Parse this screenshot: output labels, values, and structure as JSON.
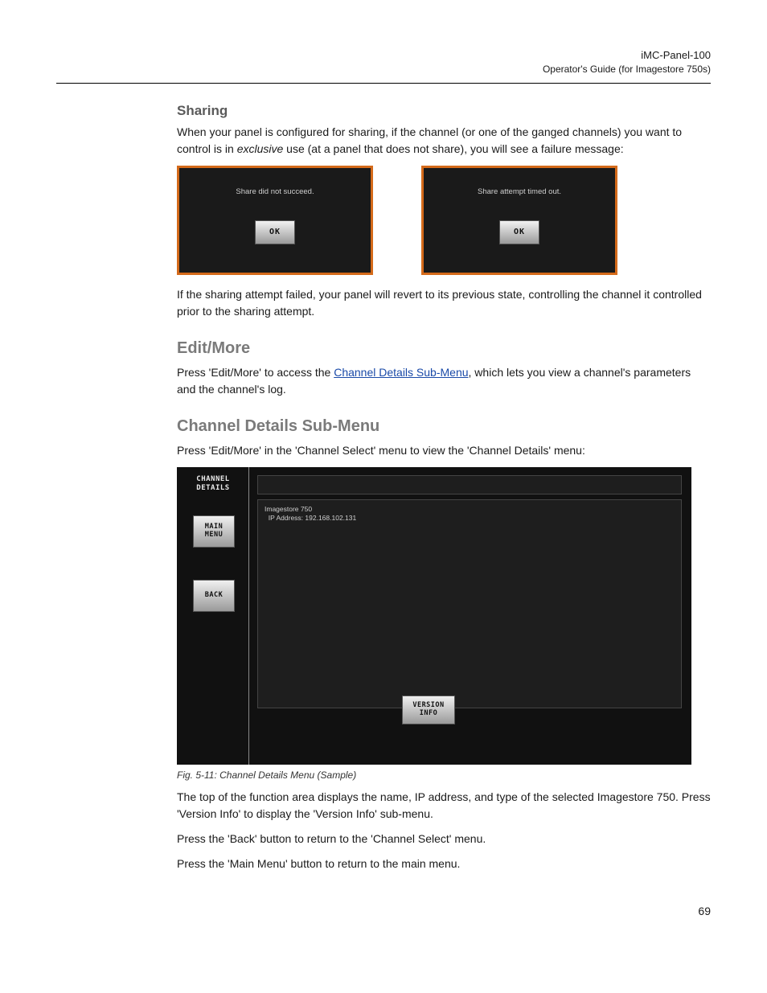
{
  "header": {
    "line1": "iMC-Panel-100",
    "line2": "Operator's Guide (for Imagestore 750s)"
  },
  "sharing": {
    "heading": "Sharing",
    "para1_pre": "When your panel is configured for sharing, if the channel (or one of the ganged channels) you want to control is in ",
    "para1_em": "exclusive",
    "para1_post": " use (at a panel that does not share), you will see a failure message:",
    "dialog1": {
      "msg": "Share did not succeed.",
      "ok": "OK"
    },
    "dialog2": {
      "msg": "Share attempt timed out.",
      "ok": "OK"
    },
    "para2": "If the sharing attempt failed, your panel will revert to its previous state, controlling the channel it controlled prior to the sharing attempt."
  },
  "editmore": {
    "heading": "Edit/More",
    "para_pre": "Press 'Edit/More' to access the ",
    "link": "Channel Details Sub-Menu",
    "para_post": ", which lets you view a channel's parameters and the channel's log."
  },
  "details": {
    "heading": "Channel Details Sub-Menu",
    "intro": "Press 'Edit/More' in the 'Channel Select' menu to view the 'Channel Details' menu:",
    "screen": {
      "title_l1": "CHANNEL",
      "title_l2": "DETAILS",
      "main_l1": "MAIN",
      "main_l2": "MENU",
      "back": "BACK",
      "info_l1": "Imagestore 750",
      "info_l2": "  IP Address: 192.168.102.131",
      "version_l1": "VERSION",
      "version_l2": "INFO"
    },
    "figcap": "Fig. 5-11: Channel Details Menu (Sample)",
    "p1": "The top of the function area displays the name, IP address, and type of the selected Imagestore 750. Press 'Version Info' to display the 'Version Info' sub-menu.",
    "p2": "Press the 'Back' button to return to the 'Channel Select' menu.",
    "p3": "Press the 'Main Menu' button to return to the main menu."
  },
  "pagenum": "69"
}
